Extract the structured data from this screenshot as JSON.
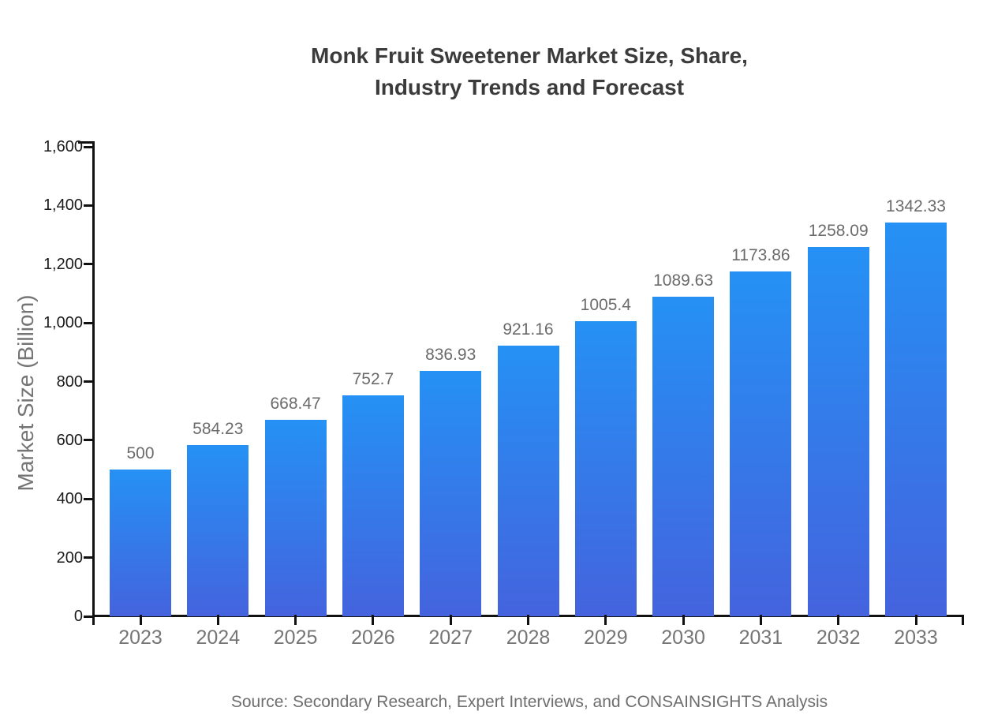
{
  "title": {
    "line1": "Monk Fruit Sweetener Market Size, Share,",
    "line2": "Industry Trends and Forecast"
  },
  "source": "Source: Secondary Research, Expert Interviews, and CONSAINSIGHTS Analysis",
  "chart_data": {
    "type": "bar",
    "title": "Monk Fruit Sweetener Market Size, Share, Industry Trends and Forecast",
    "categories": [
      "2023",
      "2024",
      "2025",
      "2026",
      "2027",
      "2028",
      "2029",
      "2030",
      "2031",
      "2032",
      "2033"
    ],
    "values": [
      500,
      584.23,
      668.47,
      752.7,
      836.93,
      921.16,
      1005.4,
      1089.63,
      1173.86,
      1258.09,
      1342.33
    ],
    "xlabel": "",
    "ylabel": "Market Size (Billion)",
    "ylim": [
      0,
      1600
    ],
    "ytick_interval": 200,
    "ytick_labels": [
      "0",
      "200",
      "400",
      "600",
      "800",
      "1,000",
      "1,200",
      "1,400",
      "1,600"
    ],
    "grid": false,
    "legend": "none",
    "colors": {
      "bar_gradient_top": "#2591F5",
      "bar_gradient_bottom": "#4463DD",
      "axis": "#111111",
      "ytick_label": "#1a1a1a",
      "xtick_label": "#757575",
      "value_label": "#6b6b6b",
      "title": "#3b3b3b",
      "ylabel": "#757575",
      "source": "#6e6e6e"
    }
  }
}
